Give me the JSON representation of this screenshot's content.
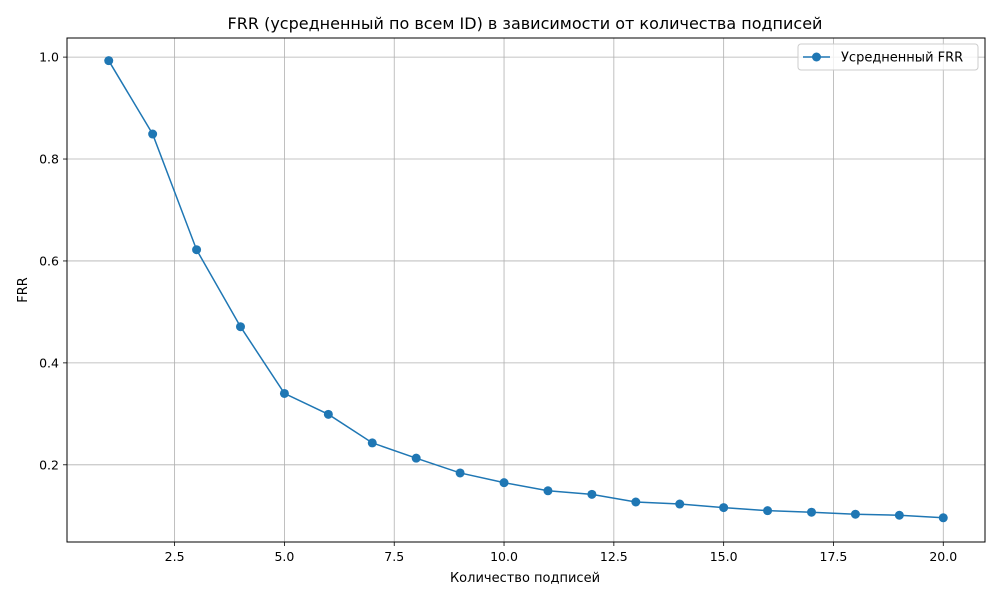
{
  "chart_data": {
    "type": "line",
    "title": "FRR (усредненный по всем ID) в зависимости от количества подписей",
    "xlabel": "Количество подписей",
    "ylabel": "FRR",
    "xlim": [
      0.05,
      20.95
    ],
    "ylim": [
      0.0485,
      1.0375
    ],
    "xticks": [
      2.5,
      5.0,
      7.5,
      10.0,
      12.5,
      15.0,
      17.5,
      20.0
    ],
    "xtick_labels": [
      "2.5",
      "5.0",
      "7.5",
      "10.0",
      "12.5",
      "15.0",
      "17.5",
      "20.0"
    ],
    "yticks": [
      0.2,
      0.4,
      0.6,
      0.8,
      1.0
    ],
    "ytick_labels": [
      "0.2",
      "0.4",
      "0.6",
      "0.8",
      "1.0"
    ],
    "grid": true,
    "legend_position": "top-right",
    "series": [
      {
        "name": "Усредненный FRR",
        "color": "#1f77b4",
        "marker": "circle",
        "x": [
          1,
          2,
          3,
          4,
          5,
          6,
          7,
          8,
          9,
          10,
          11,
          12,
          13,
          14,
          15,
          16,
          17,
          18,
          19,
          20
        ],
        "y": [
          0.993,
          0.849,
          0.622,
          0.471,
          0.34,
          0.299,
          0.243,
          0.213,
          0.184,
          0.165,
          0.149,
          0.142,
          0.127,
          0.123,
          0.116,
          0.11,
          0.107,
          0.103,
          0.101,
          0.096
        ]
      }
    ]
  }
}
